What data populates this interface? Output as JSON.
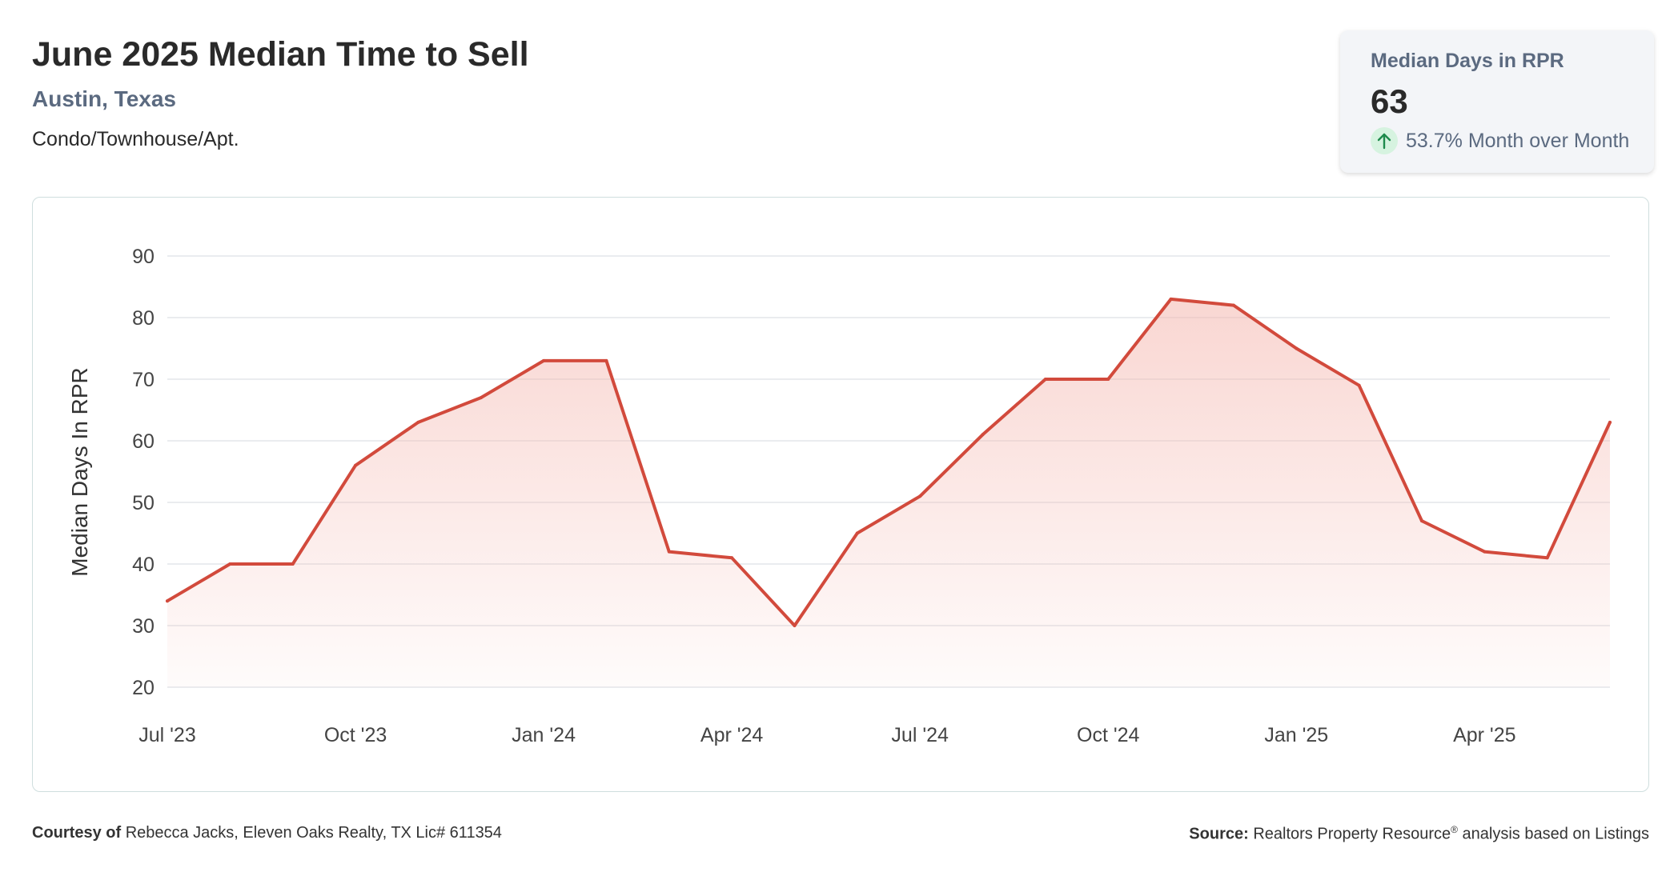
{
  "header": {
    "title": "June 2025 Median Time to Sell",
    "location": "Austin, Texas",
    "property_type": "Condo/Townhouse/Apt."
  },
  "kpi": {
    "label": "Median Days in RPR",
    "value": "63",
    "change_text": "53.7% Month over Month",
    "change_icon": "arrow-up-icon",
    "change_color": "#1e8a4c",
    "change_bg": "#d6f3e0"
  },
  "footer": {
    "courtesy_label": "Courtesy of",
    "courtesy_text": "Rebecca Jacks, Eleven Oaks Realty, TX Lic# 611354",
    "source_label": "Source:",
    "source_text_1": "Realtors Property Resource",
    "source_mark": "®",
    "source_text_2": " analysis based on Listings"
  },
  "chart_data": {
    "type": "area",
    "ylabel": "Median Days In RPR",
    "xlabel": "",
    "ylim": [
      20,
      90
    ],
    "yticks": [
      20,
      30,
      40,
      50,
      60,
      70,
      80,
      90
    ],
    "grid": true,
    "line_color": "#d24a3c",
    "fill_color": "#f4b5ad",
    "x_tick_labels": [
      {
        "label": "Jul '23",
        "index": 0
      },
      {
        "label": "Oct '23",
        "index": 3
      },
      {
        "label": "Jan '24",
        "index": 6
      },
      {
        "label": "Apr '24",
        "index": 9
      },
      {
        "label": "Jul '24",
        "index": 12
      },
      {
        "label": "Oct '24",
        "index": 15
      },
      {
        "label": "Jan '25",
        "index": 18
      },
      {
        "label": "Apr '25",
        "index": 21
      }
    ],
    "x": [
      "2023-07",
      "2023-08",
      "2023-09",
      "2023-10",
      "2023-11",
      "2023-12",
      "2024-01",
      "2024-02",
      "2024-03",
      "2024-04",
      "2024-05",
      "2024-06",
      "2024-07",
      "2024-08",
      "2024-09",
      "2024-10",
      "2024-11",
      "2024-12",
      "2025-01",
      "2025-02",
      "2025-03",
      "2025-04",
      "2025-05",
      "2025-06"
    ],
    "series": [
      {
        "values": [
          34,
          40,
          40,
          56,
          63,
          67,
          73,
          73,
          42,
          41,
          30,
          45,
          51,
          61,
          70,
          70,
          83,
          82,
          75,
          69,
          47,
          42,
          41,
          63
        ]
      }
    ]
  }
}
